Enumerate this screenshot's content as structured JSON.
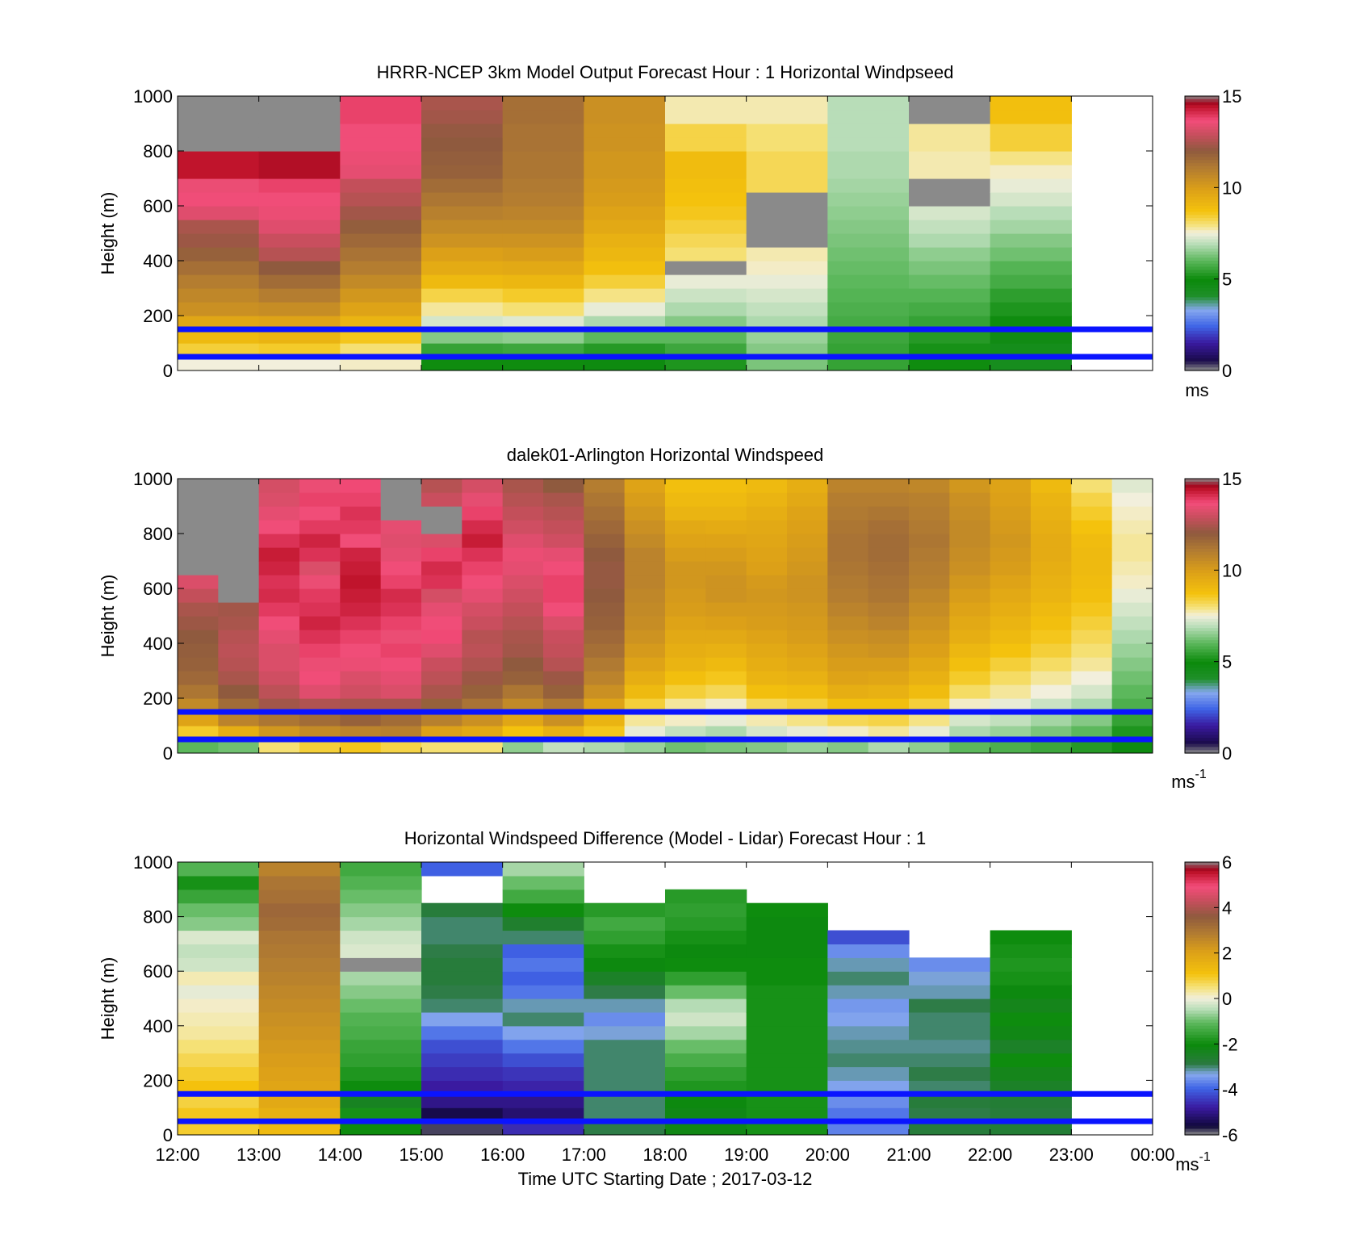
{
  "colors": {
    "background": "#ffffff",
    "reference_lines": "#0a14ff"
  },
  "chart_data": [
    {
      "type": "heatmap",
      "title": "HRRR-NCEP 3km Model Output   Forecast Hour : 1 Horizontal Windpseed",
      "xlabel": "",
      "ylabel": "Height (m)",
      "xlim": [
        12,
        24
      ],
      "ylim": [
        0,
        1000
      ],
      "x_tick_values": [
        12,
        13,
        14,
        15,
        16,
        17,
        18,
        19,
        20,
        21,
        22,
        23,
        24
      ],
      "x_tick_labels": [],
      "y_ticks": [
        0,
        200,
        400,
        600,
        800,
        1000
      ],
      "grid": false,
      "colorbar": {
        "min": 0,
        "max": 15,
        "ticks": [
          0,
          5,
          10,
          15
        ],
        "label": "ms",
        "label_sup": "",
        "palette": "speed"
      },
      "reference_lines_m": [
        50,
        150
      ],
      "x_hours": [
        12,
        13,
        14,
        15,
        16,
        17,
        18,
        19,
        20,
        21,
        22
      ],
      "z_levels_m": [
        25,
        75,
        125,
        175,
        225,
        275,
        325,
        375,
        425,
        475,
        525,
        575,
        625,
        675,
        725,
        775,
        825,
        875,
        925,
        975
      ],
      "z_values": [
        [
          7.5,
          8.4,
          9.0,
          9.7,
          10.4,
          10.7,
          11.0,
          11.4,
          11.8,
          12.2,
          12.4,
          13.3,
          13.6,
          13.5,
          14.4,
          14.4,
          15.0,
          15.0,
          15.0,
          15.0
        ],
        [
          7.5,
          8.5,
          9.2,
          9.8,
          10.5,
          11.0,
          11.5,
          12.0,
          12.6,
          12.9,
          13.3,
          13.5,
          13.6,
          13.8,
          14.5,
          14.5,
          15.0,
          15.0,
          15.0,
          15.0
        ],
        [
          7.6,
          8.0,
          8.6,
          9.2,
          9.8,
          10.2,
          10.6,
          11.0,
          11.3,
          11.6,
          11.9,
          12.3,
          12.6,
          12.8,
          13.4,
          13.5,
          13.6,
          13.6,
          13.8,
          13.8
        ],
        [
          5.0,
          5.5,
          6.4,
          7.2,
          7.8,
          8.3,
          9.0,
          9.5,
          9.9,
          10.3,
          10.6,
          10.9,
          11.2,
          11.5,
          11.8,
          11.9,
          12.0,
          12.1,
          12.3,
          12.4
        ],
        [
          5.0,
          5.6,
          6.5,
          7.3,
          8.0,
          8.5,
          9.1,
          9.6,
          10.0,
          10.3,
          10.6,
          10.8,
          11.0,
          11.1,
          11.2,
          11.2,
          11.3,
          11.3,
          11.4,
          11.4
        ],
        [
          4.8,
          5.3,
          6.0,
          6.8,
          7.4,
          7.9,
          8.4,
          8.8,
          9.1,
          9.3,
          9.6,
          9.8,
          10.0,
          10.1,
          10.2,
          10.2,
          10.3,
          10.3,
          10.4,
          10.4
        ],
        [
          5.2,
          5.6,
          6.0,
          6.4,
          6.8,
          7.1,
          7.4,
          15.0,
          8.0,
          8.2,
          8.4,
          8.6,
          8.7,
          8.8,
          8.9,
          8.9,
          8.3,
          8.3,
          7.7,
          7.7
        ],
        [
          6.3,
          6.4,
          6.6,
          6.8,
          7.0,
          7.2,
          7.4,
          7.6,
          7.7,
          15.0,
          15.0,
          15.0,
          15.0,
          8.2,
          8.2,
          8.2,
          8.0,
          8.0,
          7.7,
          7.7
        ],
        [
          5.5,
          5.5,
          5.6,
          5.7,
          5.8,
          5.9,
          6.0,
          6.1,
          6.2,
          6.3,
          6.4,
          6.5,
          6.6,
          6.7,
          6.8,
          6.8,
          6.9,
          6.9,
          6.9,
          6.9
        ],
        [
          5.0,
          5.1,
          5.3,
          5.5,
          5.7,
          5.9,
          6.1,
          6.3,
          6.5,
          6.8,
          7.0,
          7.2,
          15.0,
          15.0,
          7.7,
          7.7,
          7.8,
          7.8,
          15.0,
          15.0
        ],
        [
          4.4,
          4.5,
          4.7,
          5.0,
          5.2,
          5.4,
          5.7,
          5.9,
          6.2,
          6.4,
          6.7,
          6.9,
          7.2,
          7.4,
          7.6,
          7.9,
          8.4,
          8.4,
          8.8,
          8.8
        ]
      ]
    },
    {
      "type": "heatmap",
      "title": "dalek01-Arlington  Horizontal Windspeed",
      "xlabel": "",
      "ylabel": "Height (m)",
      "xlim": [
        12,
        24
      ],
      "ylim": [
        0,
        1000
      ],
      "x_tick_values": [
        12,
        13,
        14,
        15,
        16,
        17,
        18,
        19,
        20,
        21,
        22,
        23,
        24
      ],
      "x_tick_labels": [],
      "y_ticks": [
        0,
        200,
        400,
        600,
        800,
        1000
      ],
      "grid": false,
      "colorbar": {
        "min": 0,
        "max": 15,
        "ticks": [
          0,
          5,
          10,
          15
        ],
        "label": "ms",
        "label_sup": "-1",
        "palette": "speed"
      },
      "reference_lines_m": [
        50,
        150
      ],
      "x_hours": [
        12,
        12.5,
        13,
        13.5,
        14,
        14.5,
        15,
        15.5,
        16,
        16.5,
        17,
        17.5,
        18,
        18.5,
        19,
        19.5,
        20,
        20.5,
        21,
        21.5,
        22,
        22.5,
        23,
        23.5
      ],
      "z_levels_m": [
        25,
        75,
        125,
        175,
        225,
        275,
        325,
        375,
        425,
        475,
        525,
        575,
        625,
        675,
        725,
        775,
        825,
        875,
        925,
        975
      ],
      "z_values": [
        [
          6.0,
          8.5,
          9.8,
          10.6,
          11.2,
          11.6,
          11.8,
          11.9,
          12.0,
          12.2,
          12.4,
          12.8,
          13.2,
          15.0,
          15.0,
          15.0,
          15.0,
          15.0,
          15.0,
          15.0
        ],
        [
          6.2,
          9.4,
          10.8,
          11.5,
          12.0,
          12.4,
          12.6,
          12.7,
          12.6,
          12.4,
          12.3,
          15.0,
          15.0,
          15.0,
          15.0,
          15.0,
          15.0,
          15.0,
          15.0,
          15.0
        ],
        [
          8.0,
          10.2,
          11.2,
          12.3,
          12.7,
          13.0,
          13.2,
          13.2,
          13.4,
          13.6,
          13.9,
          14.1,
          14.0,
          14.2,
          14.3,
          14.0,
          13.6,
          13.4,
          13.2,
          13.1
        ],
        [
          8.4,
          10.6,
          11.5,
          12.5,
          13.3,
          13.6,
          13.5,
          13.8,
          14.0,
          14.2,
          14.0,
          13.9,
          13.5,
          13.2,
          14.0,
          14.2,
          13.9,
          13.6,
          13.8,
          13.5
        ],
        [
          8.6,
          10.8,
          11.8,
          12.4,
          13.0,
          13.2,
          13.5,
          13.6,
          13.8,
          14.0,
          14.2,
          14.3,
          14.4,
          14.3,
          14.2,
          13.6,
          13.9,
          14.0,
          13.8,
          13.7
        ],
        [
          8.3,
          10.9,
          11.5,
          12.4,
          13.2,
          13.4,
          13.6,
          13.8,
          13.5,
          13.8,
          14.0,
          14.1,
          13.8,
          13.6,
          13.4,
          13.3,
          13.4,
          15.0,
          15.0,
          15.0
        ],
        [
          8.0,
          9.9,
          10.9,
          11.8,
          12.4,
          12.7,
          12.9,
          13.3,
          13.7,
          13.6,
          13.4,
          13.1,
          14.0,
          14.1,
          13.8,
          13.2,
          15.0,
          15.0,
          12.9,
          12.6
        ],
        [
          8.0,
          9.6,
          10.4,
          11.3,
          11.8,
          12.2,
          12.5,
          12.7,
          12.6,
          12.9,
          13.1,
          13.4,
          13.6,
          13.8,
          14.0,
          14.3,
          14.1,
          13.8,
          13.4,
          13.1
        ],
        [
          6.5,
          8.7,
          9.7,
          10.6,
          11.2,
          11.8,
          12.0,
          12.3,
          12.4,
          12.6,
          12.8,
          13.0,
          13.2,
          13.4,
          13.5,
          13.3,
          13.0,
          12.8,
          12.6,
          12.4
        ],
        [
          7.0,
          9.3,
          10.4,
          11.1,
          11.8,
          12.2,
          12.6,
          12.8,
          12.9,
          13.2,
          13.6,
          13.8,
          13.8,
          13.6,
          13.4,
          13.0,
          12.8,
          12.6,
          12.4,
          12.0
        ],
        [
          6.8,
          8.6,
          9.2,
          9.8,
          10.4,
          10.8,
          11.1,
          11.4,
          11.6,
          11.8,
          11.9,
          12.0,
          12.1,
          12.1,
          12.0,
          11.8,
          11.6,
          11.4,
          11.2,
          11.0
        ],
        [
          6.6,
          7.4,
          7.8,
          8.4,
          9.0,
          9.4,
          9.8,
          10.1,
          10.3,
          10.5,
          10.6,
          10.7,
          10.8,
          10.8,
          10.8,
          10.6,
          10.4,
          10.2,
          10.0,
          9.8
        ],
        [
          6.2,
          7.0,
          7.6,
          7.8,
          8.4,
          8.8,
          9.2,
          9.4,
          9.6,
          9.8,
          10.0,
          10.1,
          10.2,
          10.2,
          10.0,
          9.8,
          9.6,
          9.2,
          9.0,
          8.8
        ],
        [
          6.3,
          6.8,
          7.4,
          7.6,
          8.2,
          8.6,
          9.0,
          9.3,
          9.6,
          9.9,
          10.1,
          10.3,
          10.3,
          10.2,
          10.0,
          9.8,
          9.5,
          9.2,
          9.0,
          8.8
        ],
        [
          6.4,
          7.2,
          7.7,
          8.2,
          8.8,
          9.2,
          9.4,
          9.6,
          9.8,
          10.0,
          10.1,
          10.2,
          10.1,
          9.9,
          9.8,
          9.7,
          9.6,
          9.4,
          9.2,
          9.0
        ],
        [
          6.6,
          7.4,
          7.9,
          8.4,
          8.9,
          9.3,
          9.6,
          9.8,
          10.0,
          10.1,
          10.2,
          10.3,
          10.3,
          10.2,
          10.1,
          10.0,
          9.9,
          9.8,
          9.6,
          9.4
        ],
        [
          6.4,
          7.6,
          8.2,
          8.8,
          9.4,
          9.8,
          10.0,
          10.2,
          10.4,
          10.6,
          10.8,
          11.0,
          11.1,
          11.2,
          11.3,
          11.3,
          11.2,
          11.1,
          11.0,
          10.8
        ],
        [
          6.8,
          7.8,
          8.3,
          8.8,
          9.3,
          9.7,
          10.0,
          10.3,
          10.5,
          10.8,
          11.0,
          11.2,
          11.3,
          11.4,
          11.5,
          11.5,
          11.4,
          11.2,
          11.0,
          10.8
        ],
        [
          6.5,
          7.4,
          7.9,
          8.4,
          8.9,
          9.3,
          9.6,
          9.9,
          10.1,
          10.3,
          10.5,
          10.7,
          10.9,
          11.0,
          11.1,
          11.2,
          11.1,
          11.0,
          10.9,
          10.7
        ],
        [
          6.0,
          6.8,
          7.2,
          7.6,
          8.1,
          8.5,
          8.8,
          9.1,
          9.4,
          9.6,
          9.8,
          10.0,
          10.2,
          10.4,
          10.5,
          10.6,
          10.6,
          10.5,
          10.4,
          10.2
        ],
        [
          5.8,
          6.6,
          7.0,
          7.4,
          7.8,
          8.1,
          8.4,
          8.7,
          9.0,
          9.2,
          9.4,
          9.6,
          9.8,
          10.0,
          10.1,
          10.2,
          10.1,
          10.0,
          9.9,
          9.8
        ],
        [
          5.6,
          6.3,
          6.7,
          7.1,
          7.5,
          7.8,
          8.1,
          8.4,
          8.6,
          8.8,
          9.0,
          9.2,
          9.3,
          9.4,
          9.5,
          9.5,
          9.4,
          9.3,
          9.2,
          9.0
        ],
        [
          5.3,
          6.0,
          6.4,
          6.8,
          7.2,
          7.5,
          7.8,
          8.0,
          8.2,
          8.4,
          8.6,
          8.8,
          8.9,
          9.0,
          9.0,
          8.9,
          8.7,
          8.5,
          8.3,
          8.0
        ],
        [
          4.8,
          5.2,
          5.5,
          5.8,
          6.0,
          6.2,
          6.4,
          6.6,
          6.8,
          7.0,
          7.2,
          7.4,
          7.6,
          7.7,
          7.8,
          7.8,
          7.7,
          7.6,
          7.5,
          7.3
        ]
      ]
    },
    {
      "type": "heatmap",
      "title": "Horizontal Windspeed Difference (Model - Lidar) Forecast Hour : 1",
      "xlabel": "Time UTC  Starting Date ; 2017-03-12",
      "ylabel": "Height (m)",
      "xlim": [
        12,
        24
      ],
      "ylim": [
        0,
        1000
      ],
      "x_tick_values": [
        12,
        13,
        14,
        15,
        16,
        17,
        18,
        19,
        20,
        21,
        22,
        23,
        24
      ],
      "x_tick_labels": [
        "12:00",
        "13:00",
        "14:00",
        "15:00",
        "16:00",
        "17:00",
        "18:00",
        "19:00",
        "20:00",
        "21:00",
        "22:00",
        "23:00",
        "00:00"
      ],
      "y_ticks": [
        0,
        200,
        400,
        600,
        800,
        1000
      ],
      "grid": false,
      "colorbar": {
        "min": -6,
        "max": 6,
        "ticks": [
          -6,
          -4,
          -2,
          0,
          2,
          4,
          6
        ],
        "label": "ms",
        "label_sup": "-1",
        "palette": "diff"
      },
      "reference_lines_m": [
        50,
        150
      ],
      "x_hours": [
        12,
        13,
        14,
        15,
        16,
        17,
        18,
        19,
        20,
        21,
        22
      ],
      "z_levels_m": [
        25,
        75,
        125,
        175,
        225,
        275,
        325,
        375,
        425,
        475,
        525,
        575,
        625,
        675,
        725,
        775,
        825,
        875,
        925,
        975
      ],
      "z_values": [
        [
          0.9,
          1.0,
          0.8,
          1.1,
          0.9,
          0.7,
          0.5,
          0.3,
          0.2,
          0.1,
          -0.1,
          0.2,
          -0.3,
          -0.4,
          -0.2,
          -0.8,
          -1.0,
          -1.5,
          -1.9,
          -1.2
        ],
        [
          1.3,
          1.6,
          1.8,
          1.9,
          2.0,
          2.1,
          2.2,
          2.3,
          2.4,
          2.5,
          2.6,
          2.7,
          2.8,
          2.9,
          3.0,
          3.2,
          3.3,
          3.1,
          3.0,
          2.7
        ],
        [
          -2.0,
          -1.9,
          -2.4,
          -2.0,
          -1.8,
          -1.6,
          -1.5,
          -1.3,
          -1.2,
          -1.0,
          -0.8,
          -0.6,
          6.0,
          -0.2,
          -0.3,
          -0.6,
          -0.8,
          -1.0,
          -1.2,
          -1.4
        ],
        [
          -5.8,
          -5.5,
          -5.0,
          -4.8,
          -4.6,
          -4.4,
          -4.2,
          -3.8,
          -3.4,
          -3.0,
          -2.9,
          -2.8,
          -2.8,
          -2.9,
          -3.0,
          -3.0,
          -2.8,
          null,
          null,
          -4.0
        ],
        [
          -4.6,
          -5.2,
          -5.0,
          -4.7,
          -4.5,
          -4.2,
          -3.8,
          -3.4,
          -3.0,
          -3.2,
          -3.8,
          -4.0,
          -3.8,
          -4.0,
          -3.0,
          -2.6,
          -2.0,
          -1.4,
          -1.0,
          -0.6
        ],
        [
          -2.9,
          -3.0,
          -3.0,
          -3.0,
          -3.0,
          -3.0,
          -3.0,
          -3.3,
          -3.6,
          -3.2,
          -2.9,
          -2.5,
          -2.1,
          -1.9,
          -1.6,
          -1.4,
          -1.7,
          null,
          null,
          null
        ],
        [
          -2.2,
          -2.2,
          -2.1,
          -1.8,
          -1.6,
          -1.3,
          -1.0,
          -0.6,
          -0.3,
          -0.5,
          -1.0,
          -1.6,
          -2.0,
          -2.1,
          -1.9,
          -1.7,
          -1.6,
          -1.7,
          null,
          null
        ],
        [
          -1.9,
          -1.9,
          -1.9,
          -1.9,
          -1.9,
          -1.9,
          -1.9,
          -1.9,
          -1.9,
          -1.9,
          -1.9,
          -2.0,
          -2.0,
          -2.1,
          -2.1,
          -2.1,
          -2.0,
          null,
          null,
          null
        ],
        [
          -3.7,
          -3.8,
          -3.6,
          -3.4,
          -3.2,
          -3.0,
          -3.1,
          -3.2,
          -3.4,
          -3.5,
          -3.2,
          -3.0,
          -3.2,
          -3.6,
          -4.2,
          null,
          null,
          null,
          null,
          null
        ],
        [
          -2.8,
          -2.9,
          -2.8,
          -3.0,
          -2.9,
          -3.0,
          -3.1,
          -3.0,
          -3.0,
          -2.9,
          -3.2,
          -3.3,
          -3.6,
          null,
          null,
          null,
          null,
          null,
          null,
          null
        ],
        [
          -2.7,
          -2.8,
          -2.7,
          -2.5,
          -2.3,
          -2.0,
          -2.5,
          -2.2,
          -2.0,
          -2.3,
          -2.1,
          -1.9,
          -1.8,
          -1.9,
          -2.0,
          null,
          null,
          null,
          null,
          null
        ]
      ]
    }
  ]
}
